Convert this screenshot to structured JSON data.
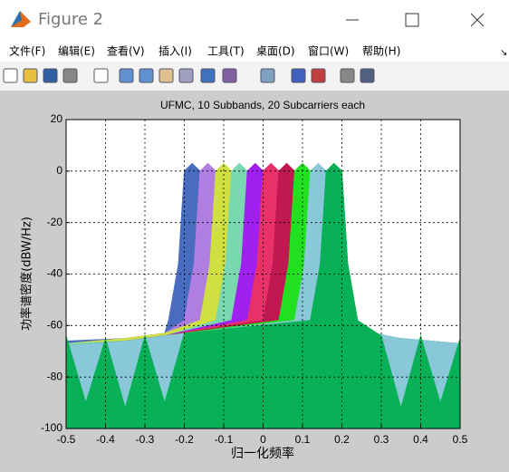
{
  "window": {
    "title": "Figure 2"
  },
  "menu": [
    "文件(F)",
    "编辑(E)",
    "查看(V)",
    "插入(I)",
    "工具(T)",
    "桌面(D)",
    "窗口(W)",
    "帮助(H)"
  ],
  "chart_data": {
    "type": "area",
    "title": "UFMC, 10 Subbands, 20 Subcarriers each",
    "x_label": "归一化频率",
    "y_label": "功率谱密度(dBW/Hz)",
    "xlim": [
      -0.5,
      0.5
    ],
    "xticks": [
      -0.5,
      -0.4,
      -0.3,
      -0.2,
      -0.1,
      0,
      0.1,
      0.2,
      0.3,
      0.4,
      0.5
    ],
    "ylim": [
      -100,
      20
    ],
    "yticks": [
      -100,
      -80,
      -60,
      -40,
      -20,
      0,
      20
    ],
    "grid": true,
    "series": [
      {
        "color": "#4a6cc0",
        "x": [
          -0.5,
          -0.35,
          -0.25,
          -0.24,
          -0.215,
          -0.2,
          -0.18,
          -0.16,
          -0.145,
          -0.12,
          0.25,
          0.35,
          0.5
        ],
        "values": [
          -66,
          -65,
          -63,
          -58,
          -36,
          0,
          3,
          0,
          -36,
          -58,
          -64,
          -66,
          -68
        ]
      },
      {
        "color": "#b07ee0",
        "x": [
          -0.5,
          -0.35,
          -0.25,
          -0.2,
          -0.175,
          -0.16,
          -0.14,
          -0.12,
          -0.105,
          -0.08,
          0.25,
          0.35,
          0.5
        ],
        "values": [
          -67,
          -65,
          -63,
          -58,
          -36,
          0,
          3,
          0,
          -36,
          -58,
          -63,
          -66,
          -68
        ]
      },
      {
        "color": "#d0e040",
        "x": [
          -0.5,
          -0.35,
          -0.25,
          -0.16,
          -0.135,
          -0.12,
          -0.1,
          -0.08,
          -0.065,
          -0.04,
          0.25,
          0.35,
          0.5
        ],
        "values": [
          -67,
          -65,
          -63,
          -58,
          -36,
          0,
          3,
          0,
          -36,
          -58,
          -63,
          -66,
          -68
        ]
      },
      {
        "color": "#7ad8b0",
        "x": [
          -0.5,
          -0.35,
          -0.25,
          -0.12,
          -0.095,
          -0.08,
          -0.06,
          -0.04,
          -0.025,
          0,
          0.25,
          0.35,
          0.5
        ],
        "values": [
          -67,
          -66,
          -64,
          -58,
          -36,
          0,
          3,
          0,
          -36,
          -58,
          -63,
          -66,
          -68
        ]
      },
      {
        "color": "#a020f0",
        "x": [
          -0.5,
          -0.35,
          -0.25,
          -0.08,
          -0.055,
          -0.04,
          -0.02,
          0,
          0.015,
          0.04,
          0.25,
          0.35,
          0.5
        ],
        "values": [
          -68,
          -66,
          -64,
          -58,
          -36,
          0,
          3,
          0,
          -36,
          -58,
          -63,
          -66,
          -68
        ]
      },
      {
        "color": "#e8306a",
        "x": [
          -0.5,
          -0.35,
          -0.25,
          -0.04,
          -0.015,
          0,
          0.02,
          0.04,
          0.055,
          0.08,
          0.25,
          0.35,
          0.5
        ],
        "values": [
          -68,
          -66,
          -64,
          -58,
          -36,
          0,
          3,
          0,
          -36,
          -58,
          -63,
          -66,
          -67
        ]
      },
      {
        "color": "#c01850",
        "x": [
          -0.5,
          -0.35,
          -0.25,
          0,
          0.025,
          0.04,
          0.06,
          0.08,
          0.095,
          0.12,
          0.25,
          0.35,
          0.5
        ],
        "values": [
          -68,
          -66,
          -64,
          -58,
          -36,
          0,
          3,
          0,
          -36,
          -58,
          -63,
          -65,
          -67
        ]
      },
      {
        "color": "#20e020",
        "x": [
          -0.5,
          -0.35,
          -0.25,
          0.04,
          0.065,
          0.08,
          0.1,
          0.12,
          0.135,
          0.16,
          0.25,
          0.35,
          0.5
        ],
        "values": [
          -68,
          -66,
          -64,
          -58,
          -36,
          0,
          3,
          0,
          -36,
          -58,
          -63,
          -65,
          -67
        ]
      },
      {
        "color": "#88c8d8",
        "x": [
          -0.5,
          -0.35,
          -0.25,
          0.08,
          0.105,
          0.12,
          0.14,
          0.16,
          0.175,
          0.2,
          0.25,
          0.35,
          0.5
        ],
        "values": [
          -68,
          -66,
          -64,
          -58,
          -36,
          0,
          3,
          0,
          -36,
          -58,
          -62,
          -65,
          -67
        ]
      },
      {
        "color": "#08b058",
        "x": [
          -0.5,
          -0.45,
          -0.4,
          -0.35,
          -0.3,
          -0.25,
          -0.2,
          0.12,
          0.145,
          0.16,
          0.18,
          0.2,
          0.215,
          0.24,
          0.3,
          0.35,
          0.4,
          0.45,
          0.5
        ],
        "values": [
          -64,
          -90,
          -65,
          -92,
          -64,
          -90,
          -63,
          -58,
          -36,
          0,
          3,
          0,
          -36,
          -58,
          -64,
          -92,
          -64,
          -90,
          -65
        ]
      }
    ]
  }
}
